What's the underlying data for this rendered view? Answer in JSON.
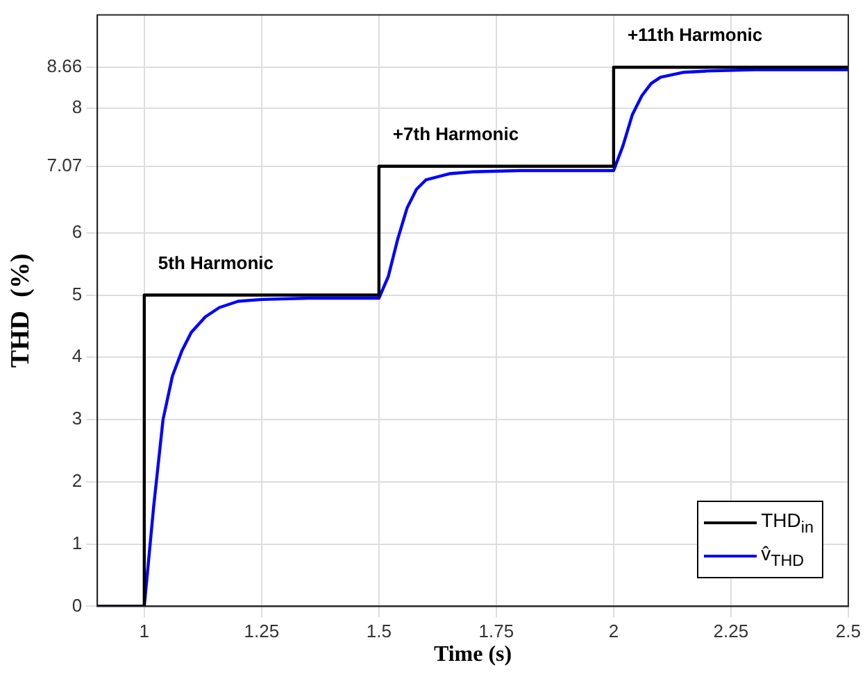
{
  "chart_data": {
    "type": "line",
    "xlabel": "Time (s)",
    "ylabel": "THD  (%)",
    "xlim": [
      0.9,
      2.5
    ],
    "xticks": [
      1,
      1.25,
      1.5,
      1.75,
      2,
      2.25,
      2.5
    ],
    "ylim": [
      0,
      9.5
    ],
    "yticks": [
      0,
      1,
      2,
      3,
      4,
      5,
      6,
      7.07,
      8,
      8.66
    ],
    "grid": true,
    "legend": "bottom right",
    "marker": "none",
    "line_style": "solid",
    "annotations": [
      {
        "text": "5th Harmonic",
        "x": 1,
        "y": 5
      },
      {
        "text": "+7th Harmonic",
        "x": 1.5,
        "y": 7.07
      },
      {
        "text": "+11th Harmonic",
        "x": 2,
        "y": 8.66
      }
    ],
    "series": [
      {
        "name": "THD$_{in}$",
        "color": "#000000",
        "x": [
          0.9,
          1,
          1,
          1.5,
          1.5,
          2,
          2,
          2.5
        ],
        "values": [
          0,
          0,
          5,
          5,
          7.07,
          7.07,
          8.66,
          8.66
        ]
      },
      {
        "name": "v̂$_{THD}$",
        "color": "#0000ff",
        "x": [
          0.9,
          1,
          1.02,
          1.04,
          1.06,
          1.08,
          1.1,
          1.13,
          1.16,
          1.2,
          1.25,
          1.35,
          1.5,
          1.52,
          1.54,
          1.56,
          1.58,
          1.6,
          1.65,
          1.7,
          1.8,
          2,
          2.02,
          2.04,
          2.06,
          2.08,
          2.1,
          2.15,
          2.2,
          2.3,
          2.5
        ],
        "values": [
          0,
          0,
          1.6,
          3,
          3.7,
          4.1,
          4.4,
          4.65,
          4.8,
          4.9,
          4.93,
          4.95,
          4.95,
          5.3,
          5.9,
          6.4,
          6.7,
          6.85,
          6.95,
          6.98,
          7,
          7,
          7.4,
          7.9,
          8.2,
          8.4,
          8.5,
          8.58,
          8.6,
          8.62,
          8.62
        ]
      }
    ]
  }
}
